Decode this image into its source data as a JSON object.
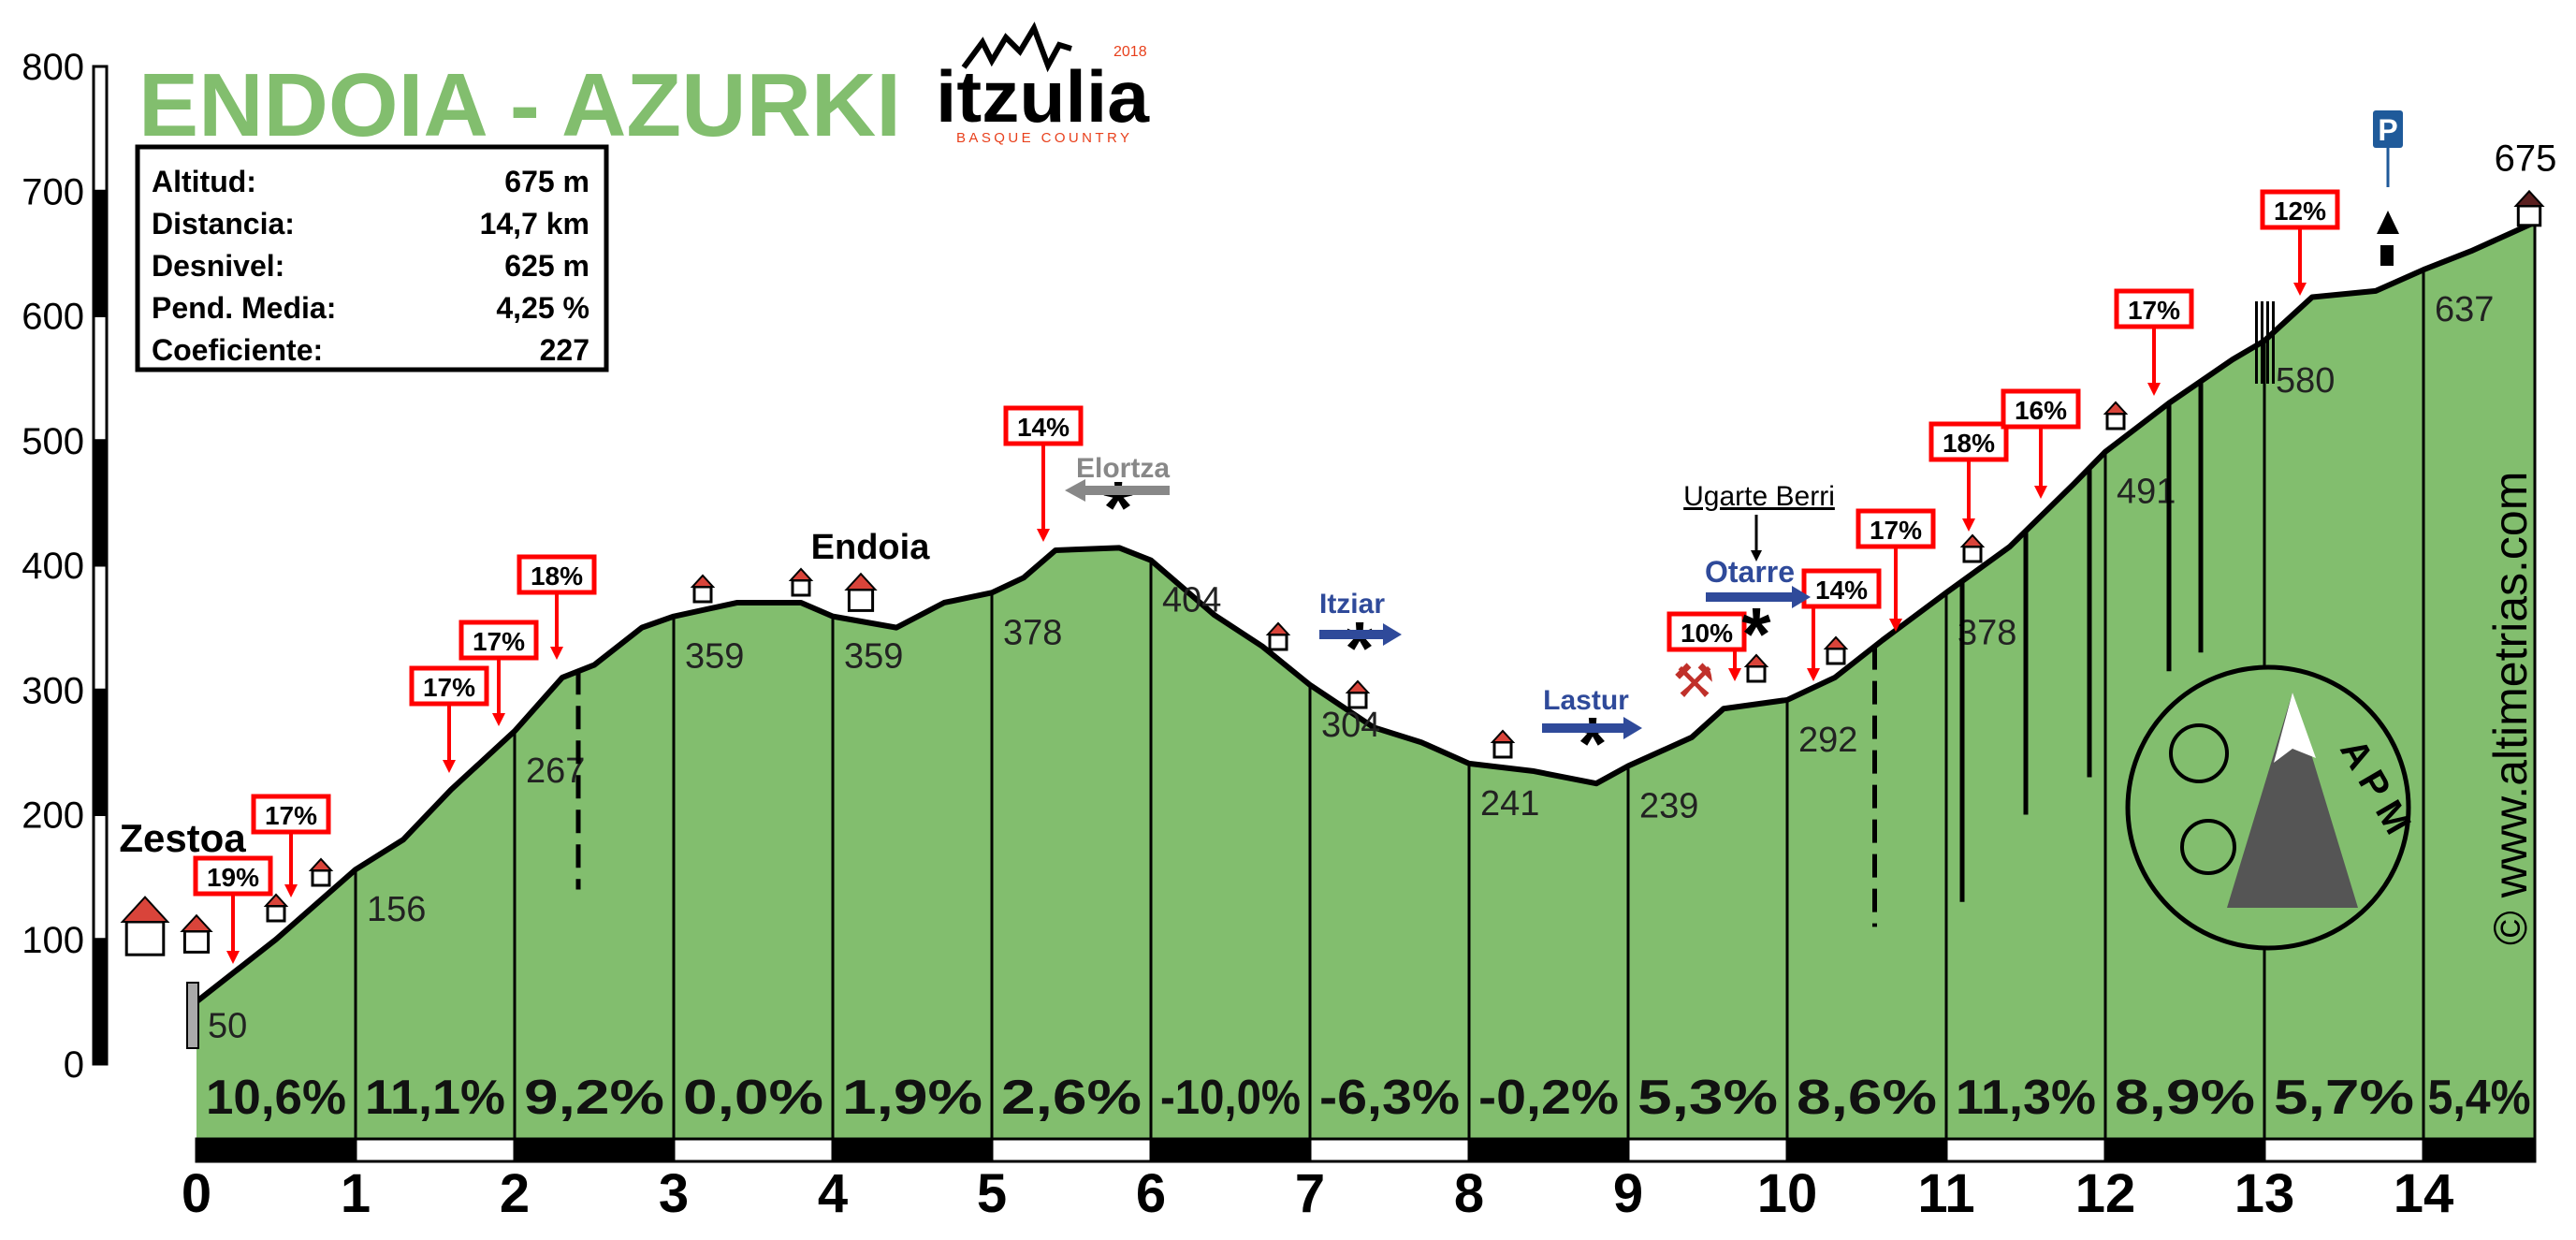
{
  "title": "ENDOIA - AZURKI",
  "stats": [
    {
      "label": "Altitud:",
      "value": "675 m"
    },
    {
      "label": "Distancia:",
      "value": "14,7 km"
    },
    {
      "label": "Desnivel:",
      "value": "625 m"
    },
    {
      "label": "Pend. Media:",
      "value": "4,25 %"
    },
    {
      "label": "Coeficiente:",
      "value": "227"
    }
  ],
  "logo": {
    "name": "itzulia",
    "year": "2018",
    "subtitle": "BASQUE COUNTRY"
  },
  "watermark": "© www.altimetrias.com",
  "apm_logo": "APM",
  "colors": {
    "fill": "#82BE6E",
    "title": "#82BE6E",
    "arrow": "#FF0000",
    "place_blue": "#2F4A9A",
    "place_grey": "#888888",
    "parking": "#1F5A9A"
  },
  "chart_data": {
    "type": "area",
    "xlabel": "",
    "ylabel": "",
    "xlim": [
      0,
      14.7
    ],
    "ylim": [
      0,
      800
    ],
    "grid": false,
    "y_ticks": [
      "0",
      "100",
      "200",
      "300",
      "400",
      "500",
      "600",
      "700",
      "800"
    ],
    "x_ticks": [
      "0",
      "1",
      "2",
      "3",
      "4",
      "5",
      "6",
      "7",
      "8",
      "9",
      "10",
      "11",
      "12",
      "13",
      "14"
    ],
    "profile": [
      [
        0,
        50
      ],
      [
        0.5,
        100
      ],
      [
        1,
        156
      ],
      [
        1.3,
        180
      ],
      [
        1.6,
        220
      ],
      [
        2,
        267
      ],
      [
        2.3,
        310
      ],
      [
        2.5,
        320
      ],
      [
        2.8,
        350
      ],
      [
        3,
        359
      ],
      [
        3.4,
        370
      ],
      [
        3.8,
        370
      ],
      [
        4,
        359
      ],
      [
        4.4,
        350
      ],
      [
        4.7,
        370
      ],
      [
        5,
        378
      ],
      [
        5.2,
        390
      ],
      [
        5.4,
        412
      ],
      [
        5.8,
        414
      ],
      [
        6,
        404
      ],
      [
        6.4,
        360
      ],
      [
        6.7,
        335
      ],
      [
        7,
        304
      ],
      [
        7.4,
        270
      ],
      [
        7.7,
        258
      ],
      [
        8,
        241
      ],
      [
        8.4,
        235
      ],
      [
        8.8,
        225
      ],
      [
        9,
        239
      ],
      [
        9.4,
        262
      ],
      [
        9.6,
        285
      ],
      [
        10,
        292
      ],
      [
        10.3,
        310
      ],
      [
        10.6,
        340
      ],
      [
        11,
        378
      ],
      [
        11.4,
        415
      ],
      [
        11.8,
        465
      ],
      [
        12,
        491
      ],
      [
        12.4,
        530
      ],
      [
        12.8,
        565
      ],
      [
        13,
        580
      ],
      [
        13.3,
        615
      ],
      [
        13.7,
        620
      ],
      [
        14,
        637
      ],
      [
        14.3,
        652
      ],
      [
        14.7,
        675
      ]
    ],
    "km_altitudes": [
      "50",
      "156",
      "267",
      "359",
      "359",
      "378",
      "404",
      "304",
      "241",
      "239",
      "292",
      "378",
      "491",
      "580",
      "637"
    ],
    "summit_altitude": "675",
    "segment_gradients": [
      "10,6%",
      "11,1%",
      "9,2%",
      "0,0%",
      "1,9%",
      "2,6%",
      "-10,0%",
      "-6,3%",
      "-0,2%",
      "5,3%",
      "8,6%",
      "11,3%",
      "8,9%",
      "5,7%",
      "5,4%"
    ],
    "max_gradient_labels": [
      "19%",
      "17%",
      "17%",
      "17%",
      "18%",
      "14%",
      "10%",
      "14%",
      "17%",
      "18%",
      "16%",
      "17%",
      "12%"
    ],
    "places": {
      "zestoa": "Zestoa",
      "endoia": "Endoia",
      "elortza": "Elortza",
      "itziar": "Itziar",
      "lastur": "Lastur",
      "ugarte_berri": "Ugarte Berri",
      "otarre": "Otarre"
    },
    "parking": "P"
  }
}
